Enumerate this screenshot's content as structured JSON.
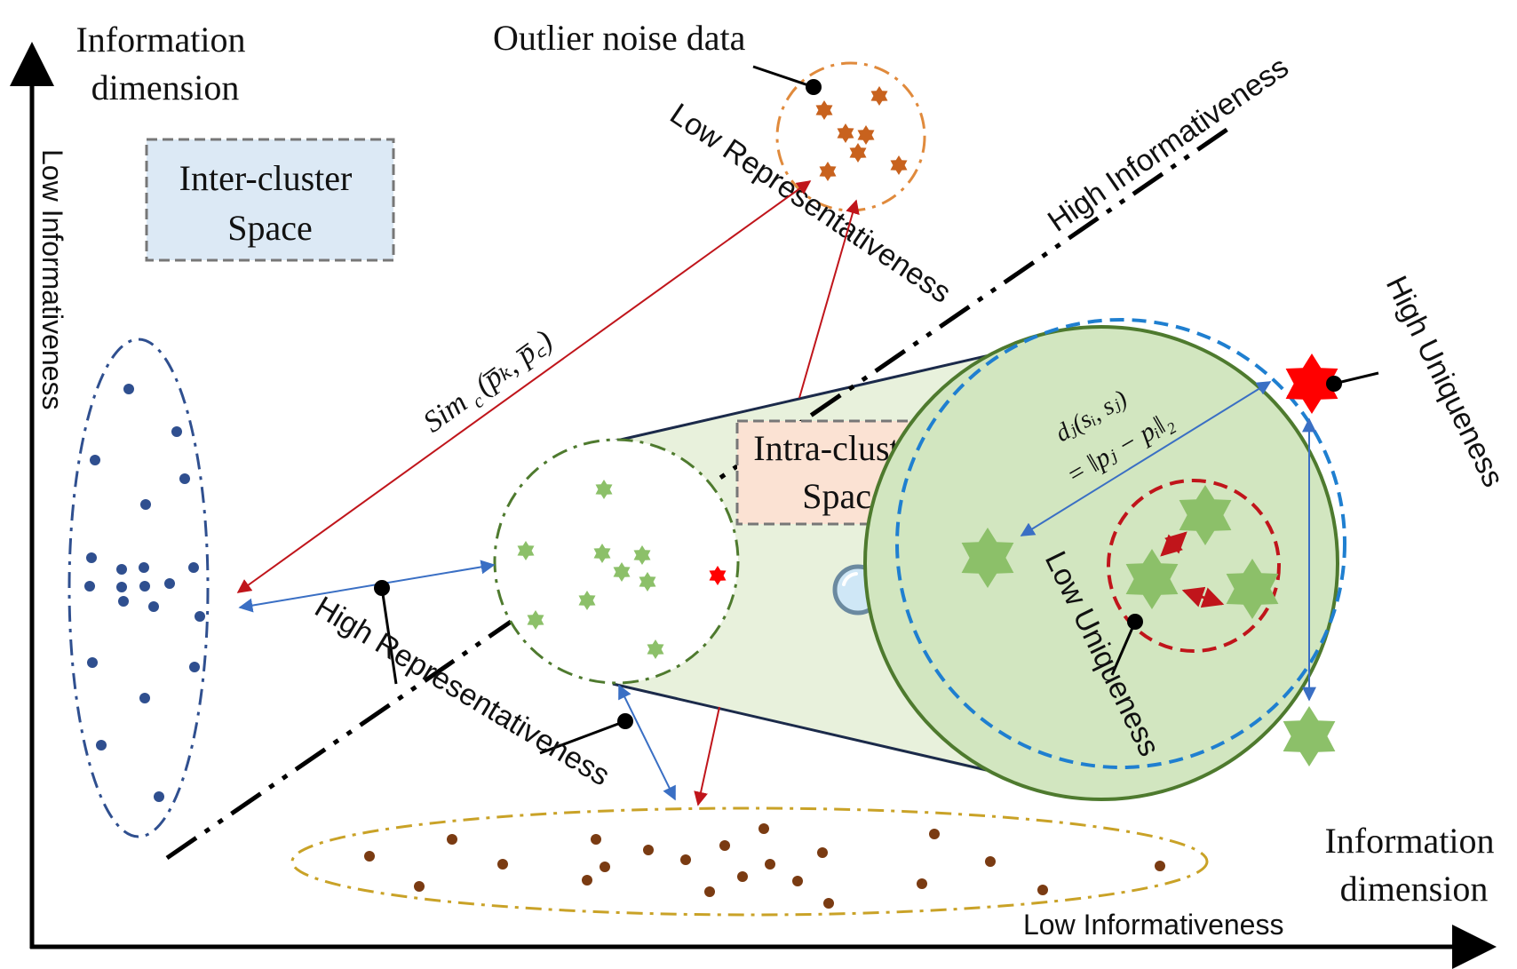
{
  "labels": {
    "y_axis_title_line1": "Information",
    "y_axis_title_line2": "dimension",
    "x_axis_title_line1": "Information",
    "x_axis_title_line2": "dimension",
    "y_axis_side": "Low Informativeness",
    "x_axis_bottom": "Low Informativeness",
    "high_informativeness": "High Informativeness",
    "outlier": "Outlier noise data",
    "low_representativeness": "Low Representativeness",
    "high_representativeness": "High Representativeness",
    "high_uniqueness": "High Uniqueness",
    "low_uniqueness": "Low Uniqueness",
    "inter_cluster_line1": "Inter-cluster",
    "inter_cluster_line2": "Space",
    "intra_cluster_line1": "Intra-cluster",
    "intra_cluster_line2": "Space"
  },
  "formulas": {
    "sim": "Sim",
    "sim_sub": "c",
    "sim_args": "(p̅ₖ, p̅꜀)",
    "dist_lhs": "dⱼ(sᵢ, sⱼ)",
    "dist_rhs": "= ‖pⱼ − pᵢ‖₂"
  },
  "colors": {
    "blue_cluster": "#2f4f8f",
    "green_cluster": "#4e7a2e",
    "green_star": "#8cc069",
    "outlier_orange": "#e08a3c",
    "outlier_star": "#c8621e",
    "brown_cluster": "#c9a227",
    "brown_dot": "#7a3b12",
    "highlight_red": "#ff0000",
    "dark_red": "#c0151b",
    "dashed_blue": "#1f7fd0",
    "inter_box_fill": "#dce9f5",
    "intra_box_fill": "#fbe2d3",
    "zoom_fill": "#e8f1dc"
  },
  "icons": {
    "magnifier": "magnifier-icon"
  }
}
